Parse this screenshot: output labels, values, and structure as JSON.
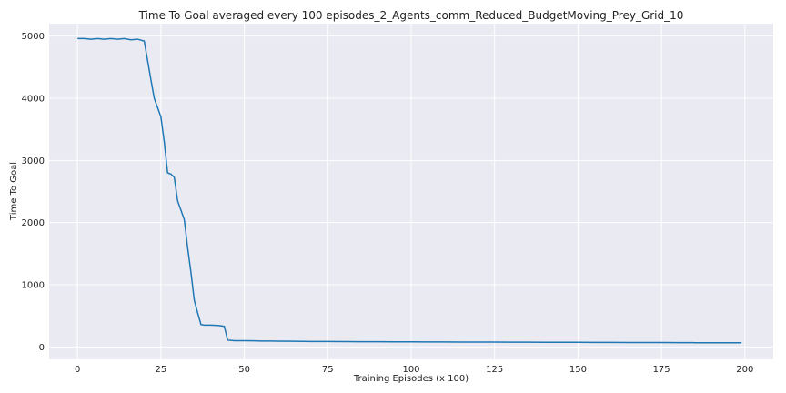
{
  "chart_data": {
    "type": "line",
    "title": "Time To Goal averaged every 100 episodes_2_Agents_comm_Reduced_BudgetMoving_Prey_Grid_10",
    "xlabel": "Training Episodes (x 100)",
    "ylabel": "Time To Goal",
    "xlim": [
      -8.5,
      208.5
    ],
    "ylim": [
      -200,
      5200
    ],
    "xticks": [
      0,
      25,
      50,
      75,
      100,
      125,
      150,
      175,
      200
    ],
    "yticks": [
      0,
      1000,
      2000,
      3000,
      4000,
      5000
    ],
    "grid": true,
    "line_color": "#1f77b4",
    "background_color": "#eaeaf2",
    "series": [
      {
        "x": [
          0,
          2,
          4,
          6,
          8,
          10,
          12,
          14,
          16,
          18,
          20,
          22,
          23,
          24,
          25,
          26,
          27,
          28,
          29,
          30,
          31,
          32,
          33,
          34,
          35,
          36,
          37,
          38,
          39,
          40,
          42,
          43,
          44,
          45,
          47,
          50,
          53,
          55,
          58,
          60,
          65,
          70,
          75,
          80,
          85,
          90,
          95,
          100,
          105,
          110,
          115,
          120,
          125,
          130,
          135,
          140,
          145,
          150,
          155,
          160,
          165,
          170,
          175,
          180,
          185,
          190,
          195,
          199
        ],
        "y": [
          4960,
          4960,
          4950,
          4960,
          4950,
          4960,
          4950,
          4960,
          4940,
          4950,
          4920,
          4300,
          4000,
          3850,
          3700,
          3300,
          2800,
          2780,
          2730,
          2350,
          2200,
          2050,
          1600,
          1200,
          750,
          550,
          360,
          350,
          350,
          350,
          345,
          340,
          330,
          110,
          100,
          100,
          98,
          95,
          95,
          93,
          90,
          88,
          87,
          85,
          84,
          83,
          82,
          81,
          80,
          80,
          79,
          79,
          78,
          77,
          76,
          75,
          74,
          74,
          73,
          72,
          71,
          70,
          70,
          69,
          68,
          68,
          67,
          67
        ]
      }
    ]
  }
}
